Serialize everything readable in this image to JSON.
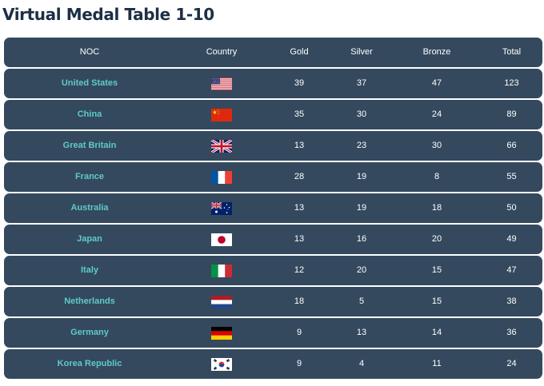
{
  "title": "Virtual Medal Table 1-10",
  "columns": {
    "noc": "NOC",
    "country": "Country",
    "gold": "Gold",
    "silver": "Silver",
    "bronze": "Bronze",
    "total": "Total"
  },
  "colors": {
    "row_background": "#34495e",
    "noc_text": "#5fcac6",
    "title": "#1d2f45"
  },
  "rows": [
    {
      "noc": "United States",
      "flag_icon": "usa-flag-icon",
      "gold": "39",
      "silver": "37",
      "bronze": "47",
      "total": "123"
    },
    {
      "noc": "China",
      "flag_icon": "china-flag-icon",
      "gold": "35",
      "silver": "30",
      "bronze": "24",
      "total": "89"
    },
    {
      "noc": "Great Britain",
      "flag_icon": "uk-flag-icon",
      "gold": "13",
      "silver": "23",
      "bronze": "30",
      "total": "66"
    },
    {
      "noc": "France",
      "flag_icon": "france-flag-icon",
      "gold": "28",
      "silver": "19",
      "bronze": "8",
      "total": "55"
    },
    {
      "noc": "Australia",
      "flag_icon": "australia-flag-icon",
      "gold": "13",
      "silver": "19",
      "bronze": "18",
      "total": "50"
    },
    {
      "noc": "Japan",
      "flag_icon": "japan-flag-icon",
      "gold": "13",
      "silver": "16",
      "bronze": "20",
      "total": "49"
    },
    {
      "noc": "Italy",
      "flag_icon": "italy-flag-icon",
      "gold": "12",
      "silver": "20",
      "bronze": "15",
      "total": "47"
    },
    {
      "noc": "Netherlands",
      "flag_icon": "netherlands-flag-icon",
      "gold": "18",
      "silver": "5",
      "bronze": "15",
      "total": "38"
    },
    {
      "noc": "Germany",
      "flag_icon": "germany-flag-icon",
      "gold": "9",
      "silver": "13",
      "bronze": "14",
      "total": "36"
    },
    {
      "noc": "Korea Republic",
      "flag_icon": "korea-flag-icon",
      "gold": "9",
      "silver": "4",
      "bronze": "11",
      "total": "24"
    }
  ]
}
